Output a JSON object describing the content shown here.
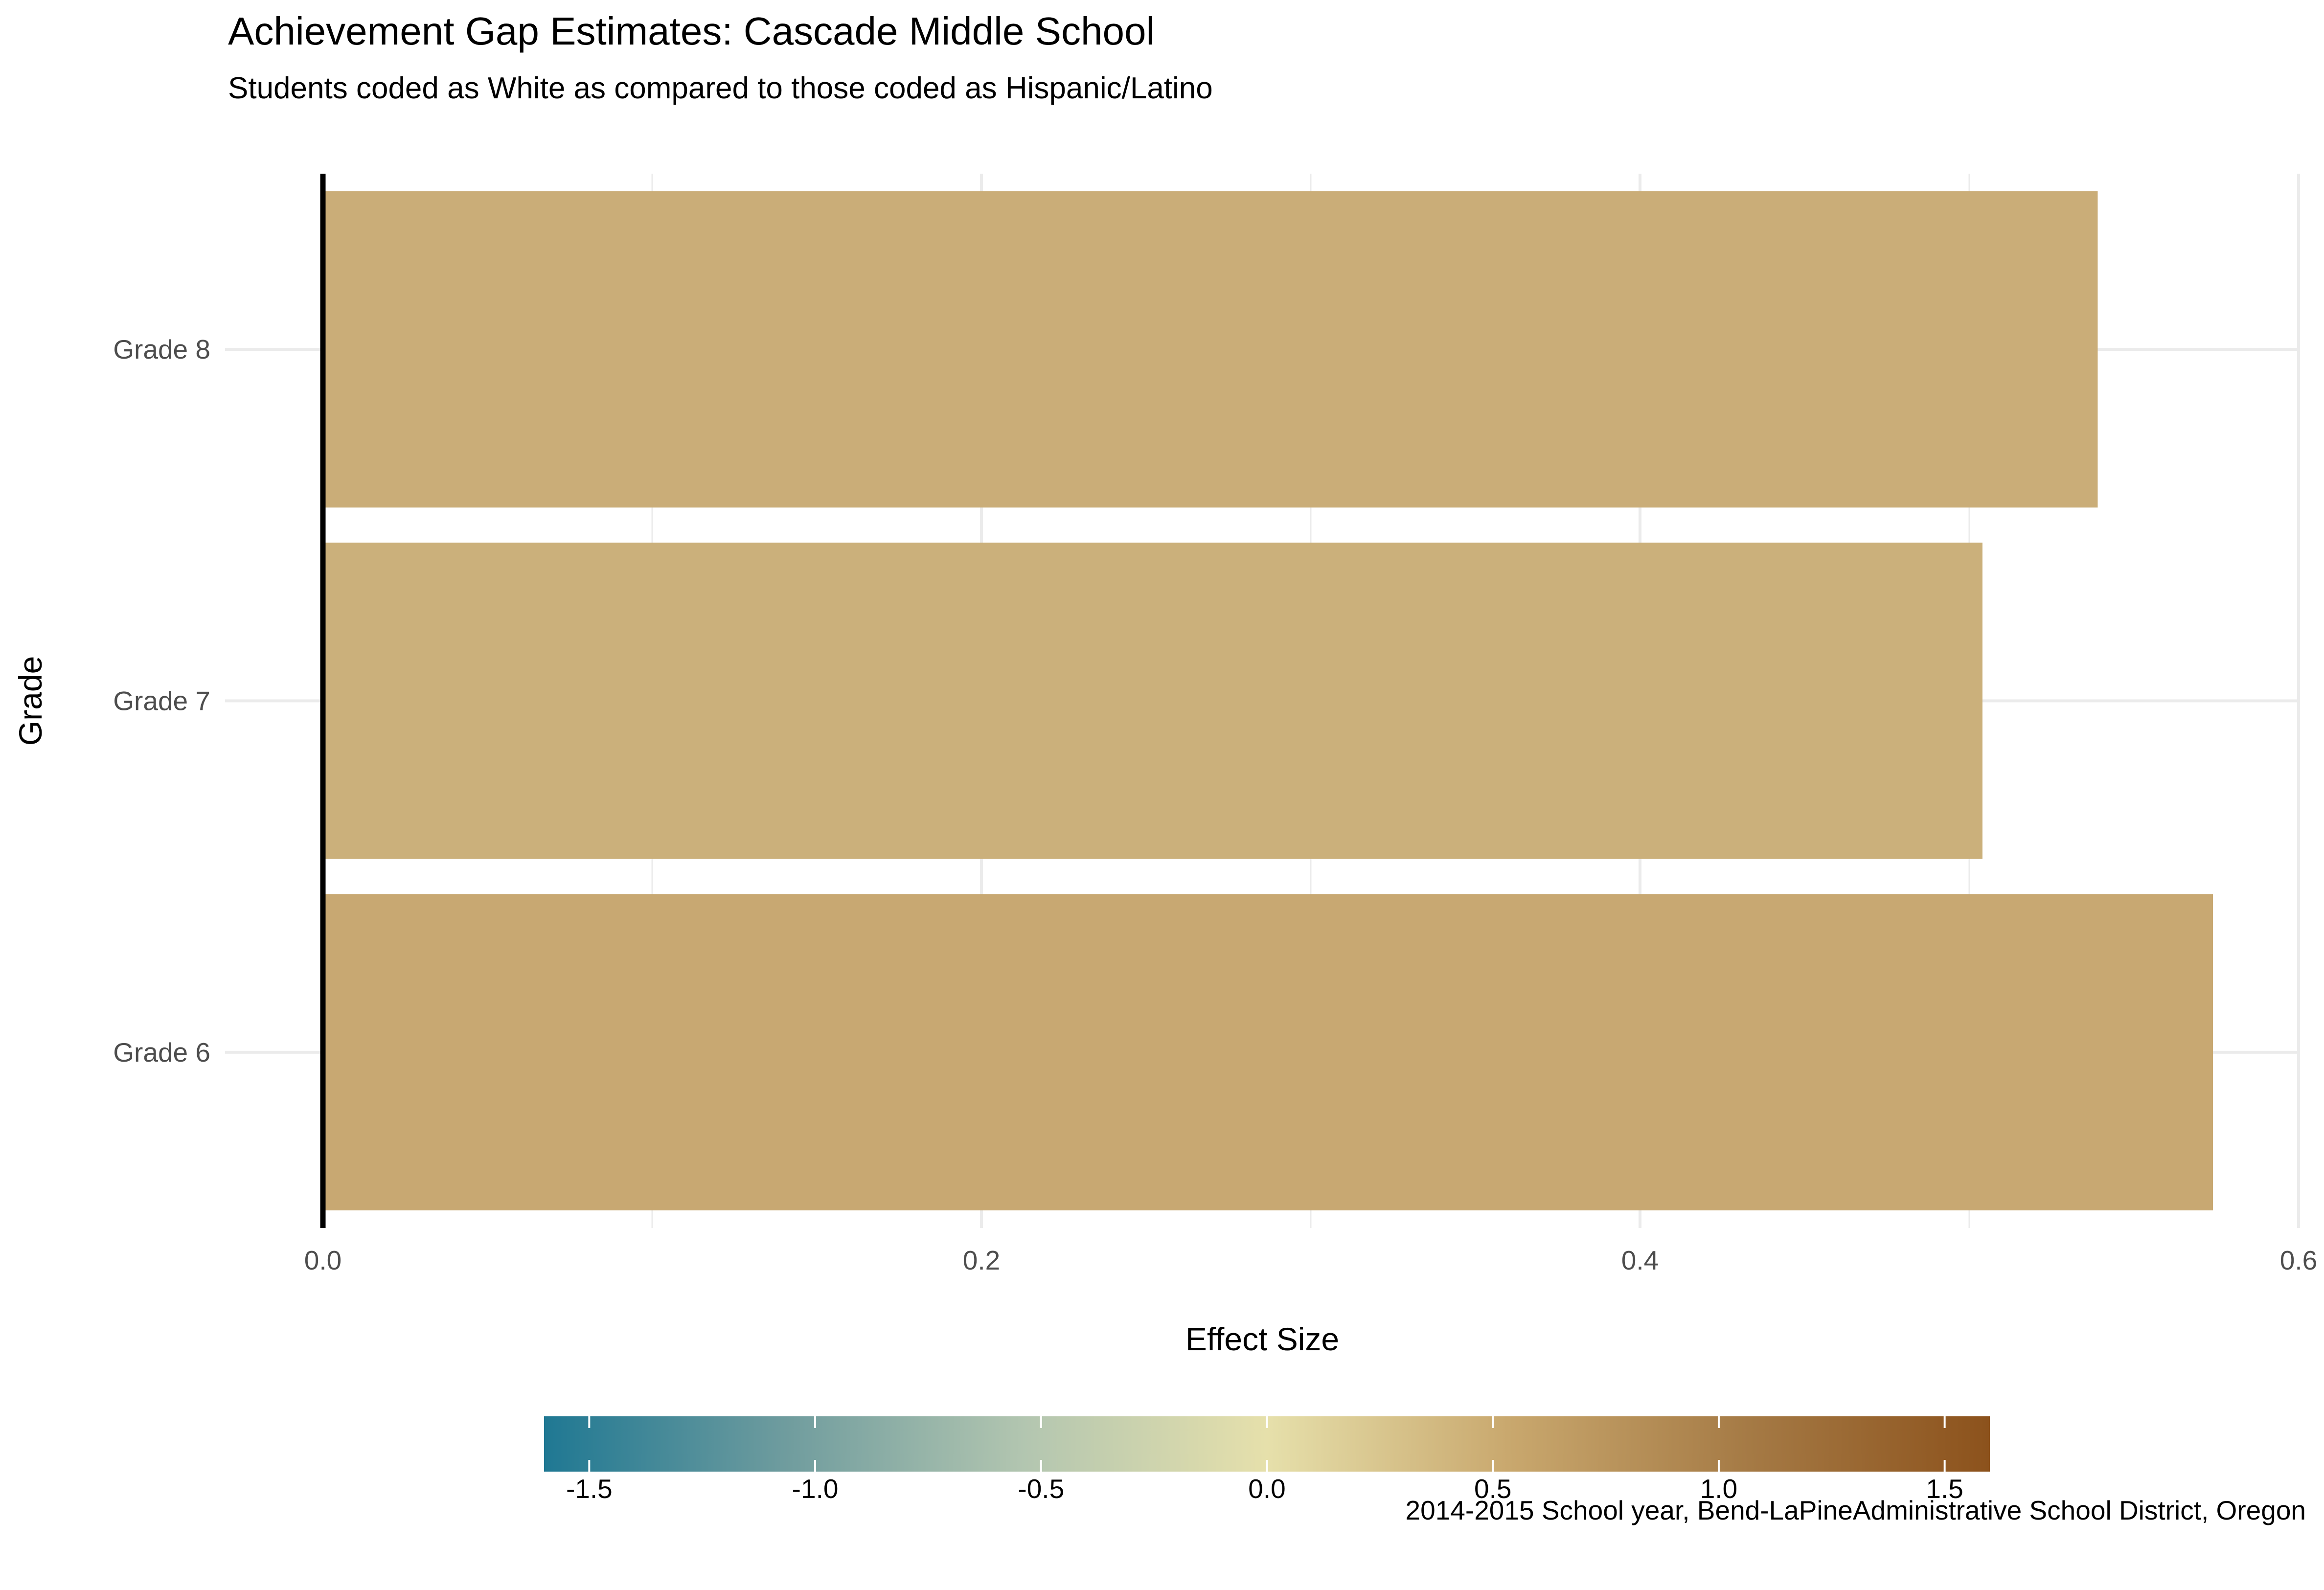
{
  "chart_data": {
    "type": "bar",
    "orientation": "horizontal",
    "title": "Achievement Gap Estimates: Cascade Middle School",
    "subtitle": "Students coded as White as compared to those coded as Hispanic/Latino",
    "caption": "2014-2015 School year, Bend-LaPineAdministrative School District, Oregon",
    "xlabel": "Effect Size",
    "ylabel": "Grade",
    "categories": [
      "Grade 6",
      "Grade 7",
      "Grade 8"
    ],
    "values": [
      0.574,
      0.504,
      0.539
    ],
    "xlim": [
      0,
      0.6
    ],
    "x_ticks": [
      0,
      0.2,
      0.4,
      0.6
    ],
    "x_tick_labels": [
      "0.0",
      "0.2",
      "0.4",
      "0.6"
    ],
    "grid": true,
    "legend": {
      "position": "bottom",
      "type": "colorbar",
      "range": [
        -1.6,
        1.6
      ],
      "ticks": [
        -1.5,
        -1.0,
        -0.5,
        0.0,
        0.5,
        1.0,
        1.5
      ],
      "tick_labels": [
        "-1.5",
        "-1.0",
        "-0.5",
        "0.0",
        "0.5",
        "1.0",
        "1.5"
      ],
      "colors": [
        "#1f7893",
        "#6f9c9e",
        "#b3c6b0",
        "#e6e0ab",
        "#c9a86e",
        "#a57a45",
        "#8c521c"
      ]
    },
    "bar_colors": [
      "#c8a872",
      "#cbb07b",
      "#caad78"
    ]
  }
}
